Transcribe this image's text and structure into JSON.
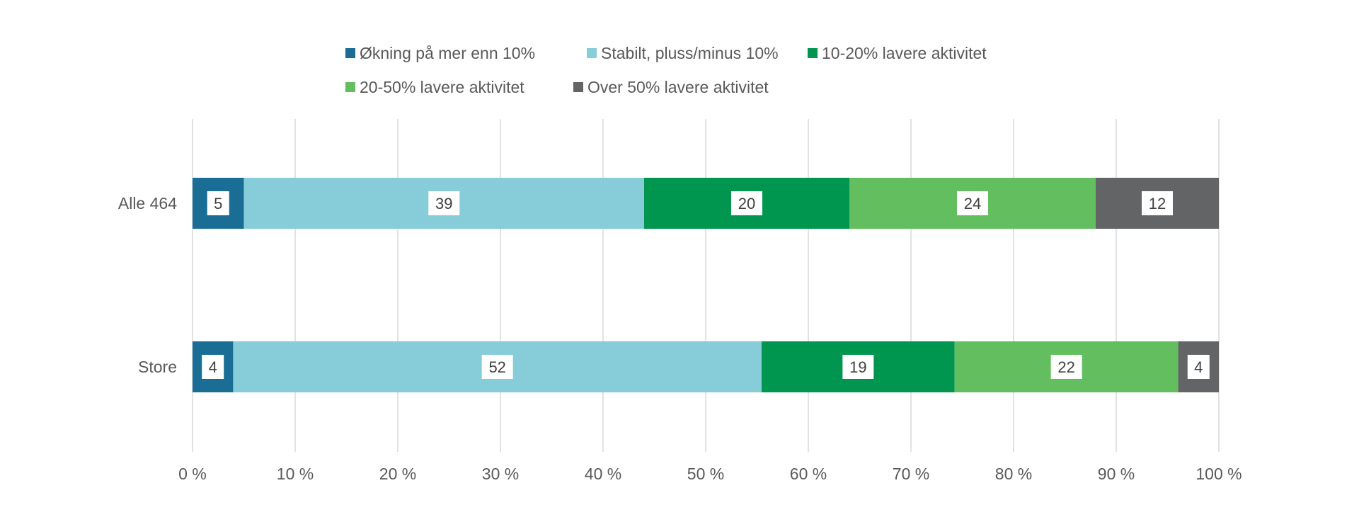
{
  "chart_data": {
    "type": "bar",
    "orientation": "horizontal",
    "stacked": true,
    "percent_stacked": true,
    "categories": [
      "Alle 464",
      "Store"
    ],
    "series": [
      {
        "name": "Økning på mer enn 10%",
        "values": [
          5,
          4
        ],
        "color": "#1A6E96"
      },
      {
        "name": "Stabilt, pluss/minus 10%",
        "values": [
          39,
          52
        ],
        "color": "#86CDD9"
      },
      {
        "name": "10-20% lavere aktivitet",
        "values": [
          20,
          19
        ],
        "color": "#00964F"
      },
      {
        "name": "20-50% lavere aktivitet",
        "values": [
          24,
          22
        ],
        "color": "#62BE5E"
      },
      {
        "name": "Over 50% lavere aktivitet",
        "values": [
          12,
          4
        ],
        "color": "#636466"
      }
    ],
    "xlim": [
      0,
      100
    ],
    "x_ticks": [
      "0 %",
      "10 %",
      "20 %",
      "30 %",
      "40 %",
      "50 %",
      "60 %",
      "70 %",
      "80 %",
      "90 %",
      "100 %"
    ],
    "grid": "vertical",
    "legend_position": "top",
    "data_labels": true,
    "title": "",
    "xlabel": "",
    "ylabel": ""
  }
}
